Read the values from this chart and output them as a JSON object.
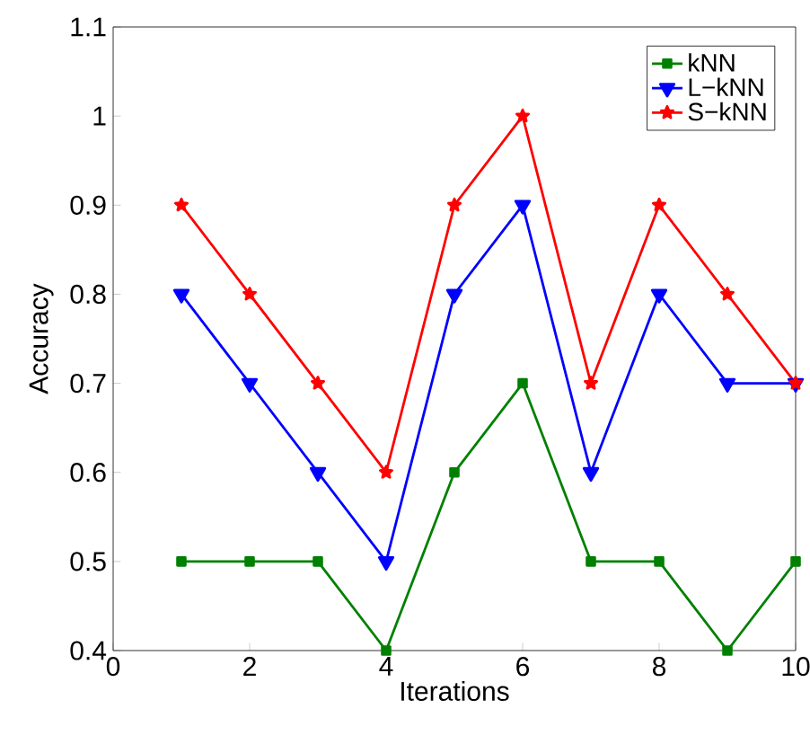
{
  "chart_data": {
    "type": "line",
    "xlabel": "Iterations",
    "ylabel": "Accuracy",
    "x": [
      1,
      2,
      3,
      4,
      5,
      6,
      7,
      8,
      9,
      10
    ],
    "series": [
      {
        "name": "kNN",
        "color": "#008000",
        "marker": "square",
        "values": [
          0.5,
          0.5,
          0.5,
          0.4,
          0.6,
          0.7,
          0.5,
          0.5,
          0.4,
          0.5
        ]
      },
      {
        "name": "L−kNN",
        "color": "#0000ff",
        "marker": "triangle",
        "values": [
          0.8,
          0.7,
          0.6,
          0.5,
          0.8,
          0.9,
          0.6,
          0.8,
          0.7,
          0.7
        ]
      },
      {
        "name": "S−kNN",
        "color": "#ff0000",
        "marker": "star",
        "values": [
          0.9,
          0.8,
          0.7,
          0.6,
          0.9,
          1.0,
          0.7,
          0.9,
          0.8,
          0.7
        ]
      }
    ],
    "xlim": [
      0,
      10
    ],
    "ylim": [
      0.4,
      1.1
    ],
    "xticks": [
      0,
      2,
      4,
      6,
      8,
      10
    ],
    "yticks": [
      0.4,
      0.5,
      0.6,
      0.7,
      0.8,
      0.9,
      1,
      1.1
    ],
    "legend": "top right",
    "grid": false,
    "line_style": "solid"
  }
}
